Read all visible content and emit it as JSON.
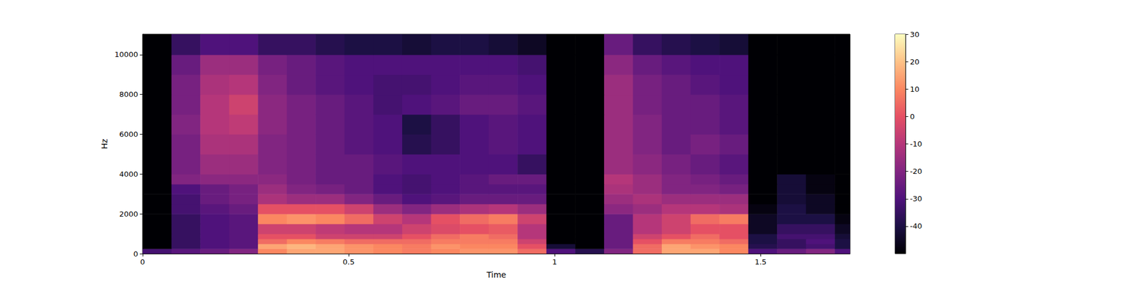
{
  "chart_data": {
    "type": "heatmap",
    "x_label": "Time",
    "y_label": "Hz",
    "xlim": [
      0,
      1.717
    ],
    "xticks": [
      0,
      0.5,
      1,
      1.5
    ],
    "ylim": [
      0,
      11025
    ],
    "yticks": [
      0,
      2000,
      4000,
      6000,
      8000,
      10000
    ],
    "time_edges": [
      0,
      0.07,
      0.14,
      0.21,
      0.28,
      0.35,
      0.42,
      0.49,
      0.56,
      0.63,
      0.7,
      0.77,
      0.84,
      0.91,
      0.98,
      1.05,
      1.12,
      1.19,
      1.26,
      1.33,
      1.4,
      1.47,
      1.54,
      1.61,
      1.68,
      1.717
    ],
    "freq_edges": [
      0,
      250,
      500,
      750,
      1000,
      1500,
      2000,
      2500,
      3000,
      3500,
      4000,
      5000,
      6000,
      7000,
      8000,
      9000,
      10000,
      11025
    ],
    "cells": [
      [
        -32,
        -28,
        -25,
        -20,
        10,
        15,
        15,
        12,
        10,
        8,
        10,
        12,
        12,
        5,
        -30,
        -38,
        -20,
        5,
        15,
        15,
        10,
        -30,
        -25,
        -20,
        -30
      ],
      [
        -50,
        -35,
        -30,
        -28,
        15,
        18,
        15,
        12,
        10,
        8,
        12,
        10,
        10,
        0,
        -42,
        -50,
        -25,
        5,
        15,
        12,
        10,
        -38,
        -35,
        -32,
        -40
      ],
      [
        -50,
        -35,
        -30,
        -28,
        5,
        10,
        8,
        5,
        5,
        5,
        8,
        8,
        8,
        -5,
        -50,
        -50,
        -25,
        0,
        8,
        8,
        5,
        -40,
        -35,
        -30,
        -40
      ],
      [
        -50,
        -35,
        -30,
        -28,
        0,
        0,
        -5,
        -5,
        -5,
        0,
        5,
        8,
        5,
        -10,
        -50,
        -50,
        -25,
        -5,
        0,
        5,
        0,
        -40,
        -32,
        -32,
        -42
      ],
      [
        -50,
        -35,
        -30,
        -28,
        -5,
        -5,
        -8,
        -10,
        -10,
        -5,
        -2,
        0,
        2,
        -10,
        -50,
        -50,
        -25,
        -10,
        -5,
        0,
        0,
        -45,
        -35,
        -35,
        -45
      ],
      [
        -50,
        -35,
        -30,
        -28,
        10,
        12,
        10,
        5,
        -5,
        -10,
        0,
        5,
        8,
        -5,
        -50,
        -50,
        -25,
        -10,
        -5,
        5,
        8,
        -45,
        -40,
        -40,
        -48
      ],
      [
        -50,
        -32,
        -28,
        -25,
        0,
        0,
        0,
        -5,
        -15,
        -20,
        -15,
        -12,
        -10,
        -15,
        -50,
        -50,
        -18,
        -15,
        -10,
        -10,
        -12,
        -48,
        -40,
        -45,
        -50
      ],
      [
        -50,
        -32,
        -25,
        -22,
        -12,
        -15,
        -15,
        -20,
        -25,
        -30,
        -28,
        -25,
        -25,
        -25,
        -50,
        -50,
        -15,
        -12,
        -15,
        -15,
        -15,
        -50,
        -42,
        -45,
        -50
      ],
      [
        -50,
        -30,
        -25,
        -22,
        -15,
        -20,
        -22,
        -25,
        -30,
        -32,
        -30,
        -28,
        -28,
        -28,
        -50,
        -50,
        -12,
        -15,
        -20,
        -20,
        -22,
        -50,
        -42,
        -48,
        -50
      ],
      [
        -50,
        -20,
        -18,
        -18,
        -18,
        -22,
        -25,
        -25,
        -30,
        -32,
        -30,
        -28,
        -25,
        -25,
        -50,
        -50,
        -10,
        -15,
        -20,
        -22,
        -25,
        -50,
        -42,
        -48,
        -50
      ],
      [
        -50,
        -22,
        -15,
        -15,
        -20,
        -22,
        -25,
        -25,
        -28,
        -30,
        -30,
        -30,
        -30,
        -35,
        -50,
        -50,
        -15,
        -18,
        -22,
        -25,
        -28,
        -50,
        -50,
        -50,
        -50
      ],
      [
        -50,
        -22,
        -12,
        -12,
        -20,
        -22,
        -25,
        -28,
        -30,
        -38,
        -35,
        -30,
        -28,
        -30,
        -50,
        -50,
        -15,
        -20,
        -25,
        -22,
        -25,
        -50,
        -50,
        -50,
        -50
      ],
      [
        -50,
        -20,
        -10,
        -8,
        -18,
        -22,
        -25,
        -28,
        -30,
        -40,
        -35,
        -30,
        -28,
        -30,
        -50,
        -50,
        -15,
        -20,
        -25,
        -25,
        -28,
        -50,
        -50,
        -50,
        -50
      ],
      [
        -50,
        -22,
        -10,
        -5,
        -18,
        -22,
        -25,
        -28,
        -32,
        -30,
        -28,
        -25,
        -25,
        -28,
        -50,
        -50,
        -15,
        -22,
        -25,
        -25,
        -28,
        -50,
        -50,
        -50,
        -50
      ],
      [
        -50,
        -22,
        -12,
        -10,
        -20,
        -25,
        -28,
        -30,
        -32,
        -32,
        -30,
        -28,
        -28,
        -30,
        -50,
        -50,
        -15,
        -22,
        -25,
        -28,
        -30,
        -50,
        -50,
        -50,
        -50
      ],
      [
        -50,
        -25,
        -15,
        -15,
        -22,
        -25,
        -28,
        -30,
        -30,
        -30,
        -30,
        -30,
        -30,
        -32,
        -50,
        -50,
        -18,
        -25,
        -28,
        -30,
        -30,
        -50,
        -50,
        -50,
        -50
      ],
      [
        -50,
        -35,
        -30,
        -30,
        -35,
        -35,
        -38,
        -40,
        -40,
        -42,
        -40,
        -40,
        -42,
        -45,
        -50,
        -50,
        -25,
        -35,
        -38,
        -40,
        -42,
        -50,
        -50,
        -50,
        -50
      ]
    ],
    "clim": [
      -50,
      30
    ],
    "cticks": [
      -40,
      -30,
      -20,
      -10,
      0,
      10,
      20,
      30
    ]
  }
}
